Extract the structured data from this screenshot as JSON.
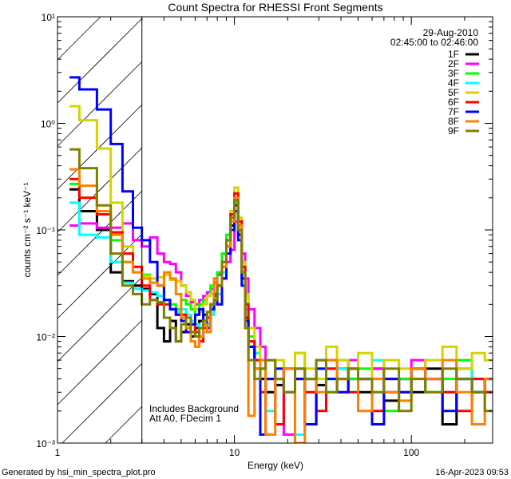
{
  "chart_data": {
    "type": "line",
    "title": "Count Spectra for RHESSI Front Segments",
    "xlabel": "Energy (keV)",
    "ylabel": "counts cm⁻² s⁻¹ keV⁻¹",
    "xscale": "log",
    "yscale": "log",
    "xlim": [
      1,
      288
    ],
    "ylim": [
      0.001,
      10
    ],
    "x_tick_labels": [
      "1",
      "10",
      "100"
    ],
    "y_tick_labels": [
      "10¹",
      "10⁰",
      "10⁻¹",
      "10⁻²",
      "10⁻³"
    ],
    "grid": false,
    "legend_position": "top-right",
    "date": "29-Aug-2010",
    "time_range": "02:45:00 to 02:46:00",
    "shaded_region_keV": [
      1,
      3
    ],
    "annotations": [
      "Includes Background",
      "Att A0, FDecim 1"
    ],
    "energy_edges": [
      1.17,
      1.33,
      1.67,
      2.0,
      2.33,
      2.67,
      3.0,
      3.33,
      3.67,
      4.0,
      4.33,
      4.67,
      5.0,
      5.33,
      5.67,
      6.0,
      6.33,
      6.67,
      7.0,
      7.33,
      7.67,
      8.0,
      8.5,
      9.0,
      9.5,
      10.0,
      10.5,
      11.0,
      11.5,
      12.0,
      13,
      14,
      15,
      17,
      19,
      22,
      25,
      29,
      33,
      38,
      44,
      50,
      60,
      70,
      85,
      100,
      120,
      150,
      180,
      220,
      260,
      300
    ],
    "series": [
      {
        "name": "1F",
        "color": "#000000",
        "values": [
          0.24,
          0.15,
          0.1,
          0.04,
          0.033,
          0.03,
          0.028,
          0.025,
          0.012,
          0.009,
          0.014,
          0.009,
          0.011,
          0.013,
          0.01,
          0.012,
          0.014,
          0.016,
          0.015,
          0.02,
          0.024,
          0.03,
          0.045,
          0.07,
          0.11,
          0.17,
          0.09,
          0.035,
          0.015,
          0.008,
          0.006,
          0.004,
          0.003,
          0.0035,
          0.005,
          0.004,
          0.0015,
          0.0035,
          0.006,
          0.005,
          0.004,
          0.003,
          0.005,
          0.0025,
          0.004,
          0.003,
          0.005,
          0.0015,
          0.004,
          0.003,
          0.004
        ]
      },
      {
        "name": "2F",
        "color": "#ff00ff",
        "values": [
          0.11,
          0.115,
          0.105,
          0.105,
          0.115,
          0.08,
          0.07,
          0.085,
          0.06,
          0.05,
          0.048,
          0.04,
          0.03,
          0.024,
          0.021,
          0.02,
          0.022,
          0.024,
          0.026,
          0.028,
          0.032,
          0.038,
          0.045,
          0.05,
          0.065,
          0.12,
          0.1,
          0.06,
          0.035,
          0.018,
          0.012,
          0.008,
          0.006,
          0.004,
          0.0012,
          0.005,
          0.004,
          0.006,
          0.005,
          0.003,
          0.006,
          0.004,
          0.005,
          0.003,
          0.004,
          0.006,
          0.004,
          0.003,
          0.005,
          0.004,
          0.003
        ]
      },
      {
        "name": "3F",
        "color": "#00ff00",
        "values": [
          0.27,
          0.2,
          0.14,
          0.08,
          0.05,
          0.04,
          0.038,
          0.035,
          0.03,
          0.022,
          0.02,
          0.018,
          0.022,
          0.02,
          0.018,
          0.016,
          0.02,
          0.022,
          0.024,
          0.03,
          0.035,
          0.04,
          0.06,
          0.09,
          0.13,
          0.2,
          0.12,
          0.045,
          0.02,
          0.01,
          0.007,
          0.005,
          0.006,
          0.004,
          0.005,
          0.007,
          0.004,
          0.005,
          0.003,
          0.006,
          0.004,
          0.005,
          0.003,
          0.002,
          0.004,
          0.005,
          0.003,
          0.004,
          0.006,
          0.003,
          0.004
        ]
      },
      {
        "name": "4F",
        "color": "#00ffff",
        "values": [
          0.18,
          0.09,
          0.085,
          0.05,
          0.032,
          0.028,
          0.027,
          0.026,
          0.024,
          0.022,
          0.018,
          0.017,
          0.018,
          0.016,
          0.014,
          0.013,
          0.012,
          0.011,
          0.013,
          0.016,
          0.02,
          0.025,
          0.04,
          0.07,
          0.12,
          0.18,
          0.1,
          0.04,
          0.018,
          0.009,
          0.007,
          0.005,
          0.002,
          0.004,
          0.005,
          0.0012,
          0.004,
          0.006,
          0.004,
          0.005,
          0.003,
          0.004,
          0.006,
          0.004,
          0.003,
          0.005,
          0.004,
          0.003,
          0.005,
          0.004,
          0.003
        ]
      },
      {
        "name": "5F",
        "color": "#d4d400",
        "values": [
          1.45,
          1.07,
          0.58,
          0.18,
          0.07,
          0.04,
          0.037,
          0.035,
          0.036,
          0.038,
          0.034,
          0.033,
          0.03,
          0.026,
          0.022,
          0.018,
          0.017,
          0.02,
          0.024,
          0.025,
          0.022,
          0.03,
          0.05,
          0.08,
          0.15,
          0.25,
          0.13,
          0.05,
          0.025,
          0.012,
          0.008,
          0.006,
          0.004,
          0.006,
          0.005,
          0.007,
          0.005,
          0.004,
          0.008,
          0.006,
          0.005,
          0.007,
          0.004,
          0.006,
          0.005,
          0.004,
          0.006,
          0.008,
          0.005,
          0.007,
          0.006
        ]
      },
      {
        "name": "6F",
        "color": "#ff0000",
        "values": [
          0.3,
          0.2,
          0.14,
          0.095,
          0.06,
          0.045,
          0.03,
          0.022,
          0.02,
          0.02,
          0.018,
          0.016,
          0.016,
          0.015,
          0.013,
          0.011,
          0.009,
          0.012,
          0.015,
          0.018,
          0.022,
          0.03,
          0.05,
          0.08,
          0.14,
          0.22,
          0.12,
          0.045,
          0.02,
          0.009,
          0.006,
          0.003,
          0.004,
          0.0015,
          0.005,
          0.004,
          0.003,
          0.002,
          0.005,
          0.004,
          0.003,
          0.004,
          0.002,
          0.004,
          0.003,
          0.005,
          0.004,
          0.003,
          0.002,
          0.004,
          0.003
        ]
      },
      {
        "name": "7F",
        "color": "#0000ff",
        "values": [
          2.7,
          2.08,
          1.35,
          0.64,
          0.23,
          0.105,
          0.08,
          0.05,
          0.03,
          0.022,
          0.018,
          0.016,
          0.014,
          0.011,
          0.013,
          0.016,
          0.018,
          0.014,
          0.012,
          0.018,
          0.025,
          0.02,
          0.035,
          0.06,
          0.1,
          0.15,
          0.08,
          0.03,
          0.014,
          0.008,
          0.005,
          0.0012,
          0.004,
          0.005,
          0.003,
          0.004,
          0.0015,
          0.005,
          0.004,
          0.003,
          0.005,
          0.004,
          0.0015,
          0.004,
          0.003,
          0.005,
          0.004,
          0.002,
          0.004,
          0.003,
          0.004
        ]
      },
      {
        "name": "8F",
        "color": "#ff8000",
        "values": [
          0.37,
          0.26,
          0.15,
          0.09,
          0.05,
          0.04,
          0.035,
          0.032,
          0.03,
          0.04,
          0.035,
          0.025,
          0.015,
          0.012,
          0.009,
          0.008,
          0.01,
          0.013,
          0.011,
          0.02,
          0.035,
          0.03,
          0.045,
          0.07,
          0.12,
          0.2,
          0.11,
          0.04,
          0.012,
          0.0018,
          0.005,
          0.006,
          0.0012,
          0.004,
          0.005,
          0.0008,
          0.004,
          0.003,
          0.006,
          0.004,
          0.005,
          0.002,
          0.004,
          0.003,
          0.0025,
          0.005,
          0.004,
          0.006,
          0.003,
          0.0015,
          0.004
        ]
      },
      {
        "name": "9F",
        "color": "#808000",
        "values": [
          0.57,
          0.38,
          0.17,
          0.06,
          0.03,
          0.025,
          0.02,
          0.022,
          0.021,
          0.015,
          0.012,
          0.009,
          0.013,
          0.015,
          0.011,
          0.01,
          0.012,
          0.014,
          0.017,
          0.02,
          0.022,
          0.03,
          0.05,
          0.08,
          0.13,
          0.19,
          0.1,
          0.04,
          0.012,
          0.006,
          0.004,
          0.005,
          0.006,
          0.004,
          0.003,
          0.005,
          0.004,
          0.006,
          0.003,
          0.004,
          0.005,
          0.004,
          0.003,
          0.005,
          0.002,
          0.004,
          0.003,
          0.005,
          0.004,
          0.003,
          0.002
        ]
      }
    ]
  },
  "footer": {
    "generated_by": "Generated by hsi_min_spectra_plot.pro",
    "timestamp": "16-Apr-2023 09:53"
  }
}
